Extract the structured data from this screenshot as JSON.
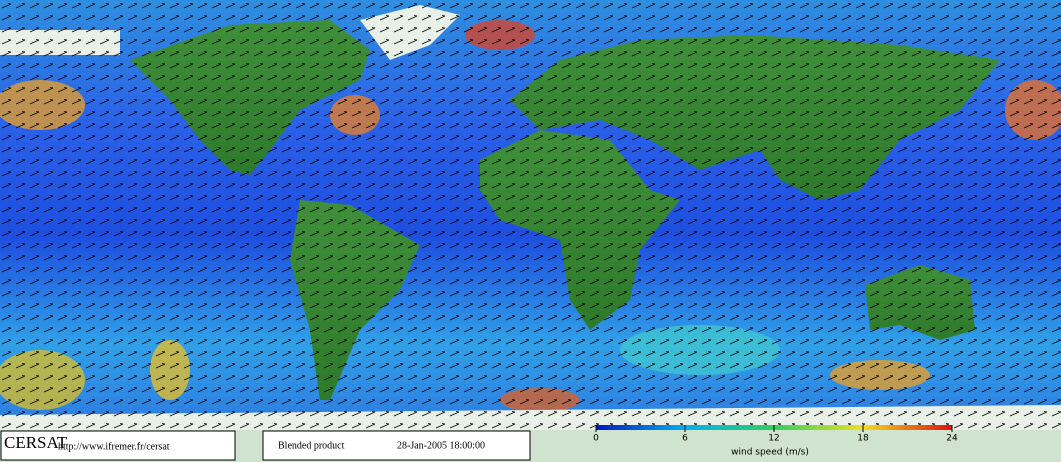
{
  "footer": {
    "logo": "CERSAT",
    "url": "http://www.ifremer.fr/cersat",
    "product": "Blended product",
    "date": "28-Jan-2005 18:00:00"
  },
  "colorbar": {
    "label": "wind speed (m/s)",
    "range": [
      0,
      24
    ],
    "ticks": [
      0,
      6,
      12,
      18,
      24
    ]
  }
}
